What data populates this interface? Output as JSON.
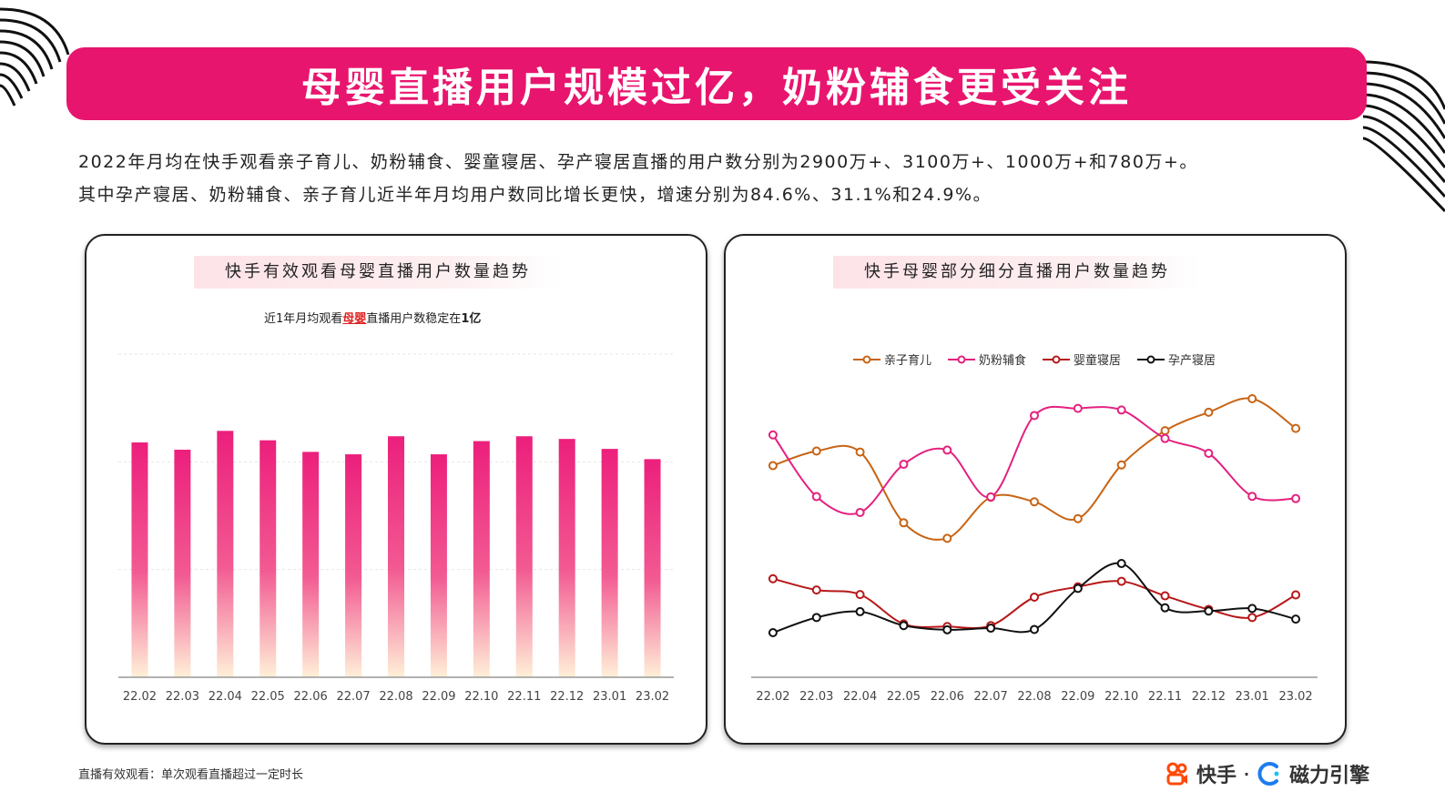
{
  "title": "母婴直播用户规模过亿，奶粉辅食更受关注",
  "intro": {
    "line1": "2022年月均在快手观看亲子育儿、奶粉辅食、婴童寝居、孕产寝居直播的用户数分别为2900万+、3100万+、1000万+和780万+。",
    "line2": "其中孕产寝居、奶粉辅食、亲子育儿近半年月均用户数同比增长更快，增速分别为84.6%、31.1%和24.9%。"
  },
  "left_card": {
    "title": "快手有效观看母婴直播用户数量趋势",
    "note_prefix": "近1年月均观看",
    "note_highlight": "母婴",
    "note_mid": "直播用户数稳定在",
    "note_bold": "1亿"
  },
  "right_card": {
    "title": "快手母婴部分细分直播用户数量趋势"
  },
  "footer_note": "直播有效观看：单次观看直播超过一定时长",
  "logos": {
    "kuaishou": "快手",
    "separator": "·",
    "cili": "磁力引擎"
  },
  "colors": {
    "brand": "#e8156e",
    "bar_top": "#ec1f7c",
    "bar_bottom": "#fff0d8"
  },
  "chart_data": [
    {
      "type": "bar",
      "categories": [
        "22.02",
        "22.03",
        "22.04",
        "22.05",
        "22.06",
        "22.07",
        "22.08",
        "22.09",
        "22.10",
        "22.11",
        "22.12",
        "23.01",
        "23.02"
      ],
      "values": [
        0.872,
        0.845,
        0.915,
        0.88,
        0.837,
        0.828,
        0.895,
        0.828,
        0.877,
        0.895,
        0.885,
        0.848,
        0.81
      ],
      "ylim": [
        0,
        1.2
      ],
      "grid": true
    },
    {
      "type": "line",
      "categories": [
        "22.02",
        "22.03",
        "22.04",
        "22.05",
        "22.06",
        "22.07",
        "22.08",
        "22.09",
        "22.10",
        "22.11",
        "22.12",
        "23.01",
        "23.02"
      ],
      "ylim": [
        0,
        1
      ],
      "legend_position": "top",
      "series": [
        {
          "name": "亲子育儿",
          "color": "#c86414",
          "values": [
            0.655,
            0.7,
            0.697,
            0.478,
            0.43,
            0.557,
            0.543,
            0.491,
            0.657,
            0.763,
            0.82,
            0.862,
            0.77
          ]
        },
        {
          "name": "奶粉辅食",
          "color": "#e4217f",
          "values": [
            0.75,
            0.559,
            0.51,
            0.659,
            0.703,
            0.558,
            0.81,
            0.832,
            0.827,
            0.739,
            0.693,
            0.56,
            0.553
          ]
        },
        {
          "name": "婴童寝居",
          "color": "#b71818",
          "values": [
            0.305,
            0.27,
            0.256,
            0.165,
            0.157,
            0.16,
            0.248,
            0.28,
            0.297,
            0.252,
            0.21,
            0.185,
            0.255
          ]
        },
        {
          "name": "孕产寝居",
          "color": "#111111",
          "values": [
            0.138,
            0.185,
            0.203,
            0.16,
            0.147,
            0.152,
            0.148,
            0.275,
            0.352,
            0.215,
            0.205,
            0.213,
            0.18
          ]
        }
      ]
    }
  ]
}
